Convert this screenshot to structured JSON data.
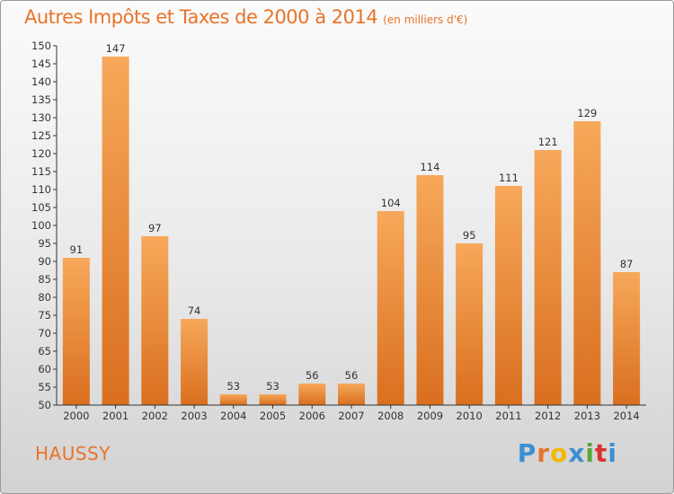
{
  "header": {
    "title": "Autres Impôts et Taxes de 2000 à 2014",
    "unit": "(en milliers d'€)"
  },
  "footer": {
    "place": "HAUSSY",
    "brand": "Proxiti",
    "brand_colors": [
      "#3d8fd1",
      "#e8732a",
      "#f2b800",
      "#3d8fd1",
      "#5aa63a",
      "#d8332f",
      "#3d8fd1"
    ]
  },
  "colors": {
    "accent": "#e8732a",
    "bar_top": "#f7a85a",
    "bar_bottom": "#d96f1f",
    "axis": "#333333"
  },
  "chart_data": {
    "type": "bar",
    "categories": [
      "2000",
      "2001",
      "2002",
      "2003",
      "2004",
      "2005",
      "2006",
      "2007",
      "2008",
      "2009",
      "2010",
      "2011",
      "2012",
      "2013",
      "2014"
    ],
    "values": [
      91,
      147,
      97,
      74,
      53,
      53,
      56,
      56,
      104,
      114,
      95,
      111,
      121,
      129,
      87
    ],
    "ylim": [
      50,
      150
    ],
    "ytick_step": 5,
    "grid": false,
    "data_labels": true
  }
}
